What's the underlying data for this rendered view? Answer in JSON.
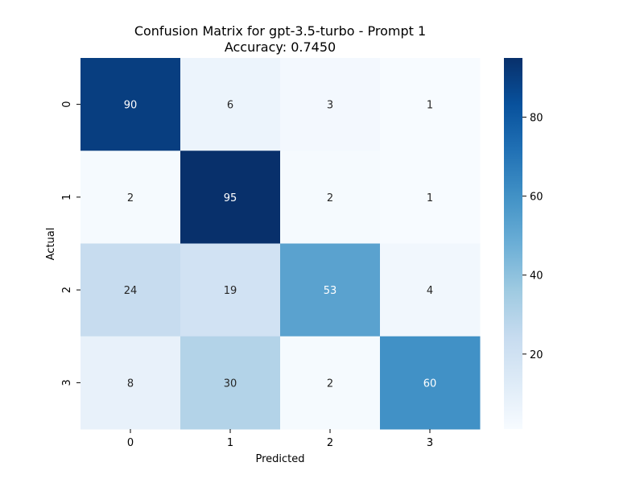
{
  "chart_data": {
    "type": "heatmap",
    "title": "Confusion Matrix for gpt-3.5-turbo - Prompt 1",
    "subtitle": "Accuracy: 0.7450",
    "xlabel": "Predicted",
    "ylabel": "Actual",
    "x_categories": [
      "0",
      "1",
      "2",
      "3"
    ],
    "y_categories": [
      "0",
      "1",
      "2",
      "3"
    ],
    "matrix": [
      [
        90,
        6,
        3,
        1
      ],
      [
        2,
        95,
        2,
        1
      ],
      [
        24,
        19,
        53,
        4
      ],
      [
        8,
        30,
        2,
        60
      ]
    ],
    "colorscale": "Blues",
    "color_range": [
      1,
      95
    ],
    "colorbar_ticks": [
      20,
      40,
      60,
      80
    ]
  }
}
